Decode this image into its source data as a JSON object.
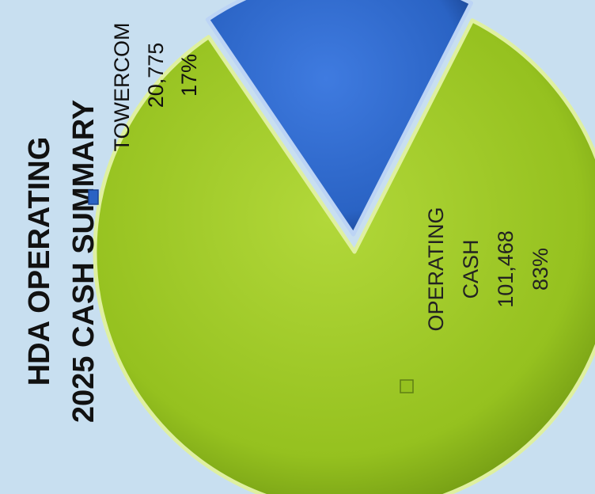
{
  "chart_data": {
    "type": "pie",
    "title_lines": [
      "HDA OPERATING",
      "2025 CASH SUMMARY"
    ],
    "slices": [
      {
        "name_lines": [
          "OPERATING",
          "CASH"
        ],
        "value": 101468,
        "value_label": "101,468",
        "percent_label": "83%",
        "color": "#95c11f"
      },
      {
        "name_lines": [
          "TOWERCOM"
        ],
        "value": 20775,
        "value_label": "20,775",
        "percent_label": "17%",
        "color": "#2a63c4"
      }
    ],
    "exploded": "TOWERCOM",
    "legend": "none"
  }
}
